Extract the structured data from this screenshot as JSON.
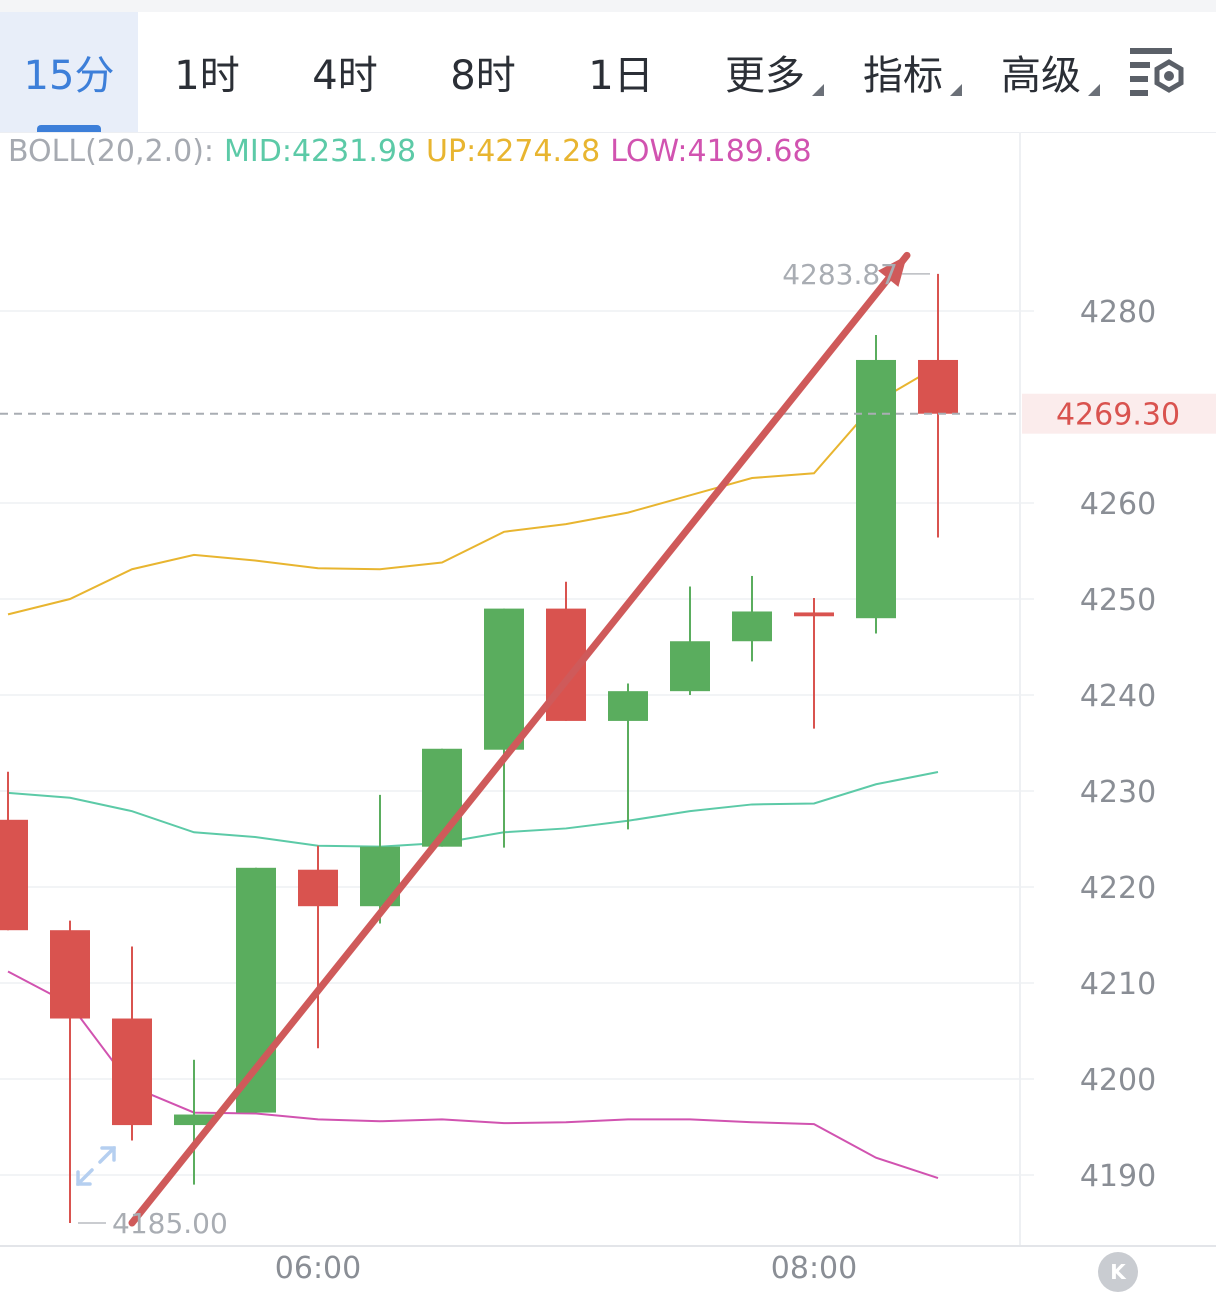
{
  "toolbar": {
    "tabs": [
      {
        "label": "15分",
        "active": true
      },
      {
        "label": "1时"
      },
      {
        "label": "4时"
      },
      {
        "label": "8时"
      },
      {
        "label": "1日"
      },
      {
        "label": "更多",
        "dropdown": true
      },
      {
        "label": "指标",
        "dropdown": true
      },
      {
        "label": "高级",
        "dropdown": true
      }
    ],
    "settings_icon": "chart-settings-icon"
  },
  "indicator": {
    "name": "BOLL(20,2.0):",
    "mid": "MID:4231.98",
    "up": "UP:4274.28",
    "low": "LOW:4189.68",
    "colors": {
      "name": "#a6aab1",
      "mid": "#5ccaa7",
      "up": "#e8b530",
      "low": "#d153b0"
    }
  },
  "chart_data": {
    "type": "candlestick",
    "interval": "15分",
    "y_ticks": [
      4280,
      4260,
      4250,
      4240,
      4230,
      4220,
      4210,
      4200,
      4190
    ],
    "y_range": [
      4182,
      4293
    ],
    "x_labels": [
      {
        "label": "06:00",
        "index": 5
      },
      {
        "label": "08:00",
        "index": 13
      }
    ],
    "current_price": 4269.3,
    "current_price_label": "4269.30",
    "max_label": "4283.87",
    "min_label": "4185.00",
    "max_price": 4283.87,
    "max_index": 15,
    "min_price": 4185.0,
    "min_index": 1,
    "candles": [
      {
        "open": 4227.0,
        "close": 4215.5,
        "high": 4232.0,
        "low": 4215.5
      },
      {
        "open": 4215.5,
        "close": 4206.3,
        "high": 4216.5,
        "low": 4185.0
      },
      {
        "open": 4206.3,
        "close": 4195.2,
        "high": 4213.8,
        "low": 4193.6
      },
      {
        "open": 4195.2,
        "close": 4196.3,
        "high": 4202.0,
        "low": 4189.0
      },
      {
        "open": 4196.5,
        "close": 4222.0,
        "high": 4222.0,
        "low": 4196.5
      },
      {
        "open": 4221.8,
        "close": 4218.0,
        "high": 4224.3,
        "low": 4203.2
      },
      {
        "open": 4218.0,
        "close": 4224.2,
        "high": 4229.6,
        "low": 4216.2
      },
      {
        "open": 4224.2,
        "close": 4234.4,
        "high": 4234.4,
        "low": 4224.2
      },
      {
        "open": 4234.3,
        "close": 4249.0,
        "high": 4249.0,
        "low": 4224.1
      },
      {
        "open": 4249.0,
        "close": 4237.3,
        "high": 4251.8,
        "low": 4237.3
      },
      {
        "open": 4237.3,
        "close": 4240.4,
        "high": 4241.2,
        "low": 4226.0
      },
      {
        "open": 4240.4,
        "close": 4245.6,
        "high": 4251.3,
        "low": 4240.0
      },
      {
        "open": 4245.6,
        "close": 4248.7,
        "high": 4252.4,
        "low": 4243.5
      },
      {
        "open": 4248.6,
        "close": 4248.2,
        "high": 4250.1,
        "low": 4236.5
      },
      {
        "open": 4248.0,
        "close": 4274.9,
        "high": 4277.5,
        "low": 4246.4
      },
      {
        "open": 4274.9,
        "close": 4269.3,
        "high": 4283.87,
        "low": 4256.4
      }
    ],
    "series": [
      {
        "name": "UP",
        "color": "#e8b530",
        "values": [
          4248.4,
          4250.0,
          4253.1,
          4254.6,
          4254.0,
          4253.2,
          4253.1,
          4253.8,
          4257.0,
          4257.8,
          4259.0,
          4260.8,
          4262.6,
          4263.1,
          4270.5,
          4274.28
        ]
      },
      {
        "name": "MID",
        "color": "#5ccaa7",
        "values": [
          4229.8,
          4229.3,
          4227.9,
          4225.7,
          4225.2,
          4224.3,
          4224.2,
          4224.6,
          4225.7,
          4226.1,
          4226.9,
          4227.9,
          4228.6,
          4228.7,
          4230.7,
          4231.98
        ]
      },
      {
        "name": "LOW",
        "color": "#d153b0",
        "values": [
          4211.2,
          4207.8,
          4199.2,
          4196.5,
          4196.4,
          4195.8,
          4195.6,
          4195.8,
          4195.4,
          4195.5,
          4195.8,
          4195.8,
          4195.5,
          4195.3,
          4191.8,
          4189.68
        ]
      }
    ],
    "colors": {
      "up_candle": "#5aad5e",
      "down_candle": "#d9534f",
      "grid": "#eef0f3",
      "axis_text": "#8a8e95",
      "price_line": "#a9adb3",
      "price_text": "#d9534f",
      "price_bg": "#fbecec",
      "arrow": "#cf5a5a"
    },
    "annotation": {
      "type": "arrow",
      "from": {
        "index": 2,
        "price": 4185.0
      },
      "to": {
        "index": 14.5,
        "price": 4285.8
      }
    }
  }
}
